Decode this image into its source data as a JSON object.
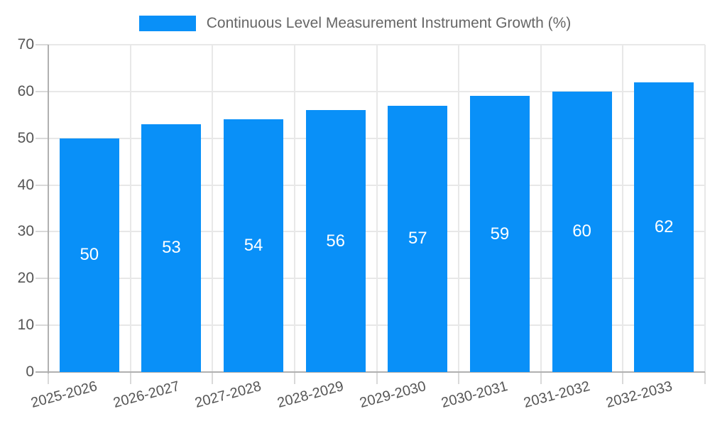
{
  "legend": {
    "label": "Continuous Level Measurement Instrument Growth (%)"
  },
  "chart_data": {
    "type": "bar",
    "title": "Continuous Level Measurement Instrument Growth (%)",
    "categories": [
      "2025-2026",
      "2026-2027",
      "2027-2028",
      "2028-2029",
      "2029-2030",
      "2030-2031",
      "2031-2032",
      "2032-2033"
    ],
    "values": [
      50,
      53,
      54,
      56,
      57,
      59,
      60,
      62
    ],
    "value_labels_shown_inside_bars": true,
    "xlabel": "",
    "ylabel": "",
    "ylim": [
      0,
      70
    ],
    "yticks": [
      0,
      10,
      20,
      30,
      40,
      50,
      60,
      70
    ],
    "grid": true,
    "legend_position": "top-center",
    "x_label_rotation_deg": -15,
    "style": {
      "bar_color": "#0990F8",
      "value_label_color": "#ffffff",
      "grid_color": "#e8e8e8",
      "axis_color": "#b0b0b0",
      "tick_color": "#d9d9d9",
      "title_color": "#666666",
      "axis_label_color": "#555555"
    }
  }
}
